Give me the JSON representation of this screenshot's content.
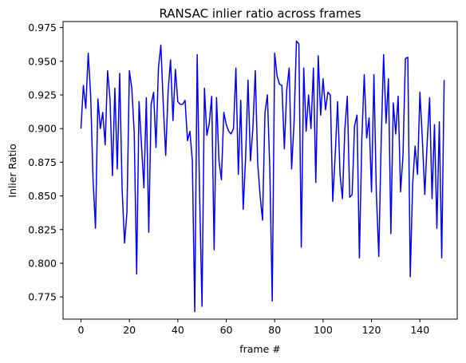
{
  "chart_data": {
    "type": "line",
    "title": "RANSAC inlier ratio across frames",
    "xlabel": "frame #",
    "ylabel": "Inlier Ratio",
    "xlim": [
      -7.4,
      155.4
    ],
    "ylim": [
      0.7585,
      0.9795
    ],
    "xticks": [
      0,
      20,
      40,
      60,
      80,
      100,
      120,
      140
    ],
    "yticks": [
      0.775,
      0.8,
      0.825,
      0.85,
      0.875,
      0.9,
      0.925,
      0.95,
      0.975
    ],
    "ytick_labels": [
      "0.775",
      "0.800",
      "0.825",
      "0.850",
      "0.875",
      "0.900",
      "0.925",
      "0.950",
      "0.975"
    ],
    "grid": false,
    "series": [
      {
        "color": "#0000ff",
        "values": [
          0.9,
          0.932,
          0.915,
          0.956,
          0.925,
          0.862,
          0.826,
          0.922,
          0.9,
          0.912,
          0.888,
          0.943,
          0.922,
          0.865,
          0.93,
          0.87,
          0.941,
          0.855,
          0.815,
          0.838,
          0.943,
          0.93,
          0.897,
          0.792,
          0.92,
          0.888,
          0.856,
          0.923,
          0.823,
          0.918,
          0.927,
          0.886,
          0.945,
          0.962,
          0.918,
          0.88,
          0.928,
          0.951,
          0.906,
          0.944,
          0.92,
          0.918,
          0.918,
          0.921,
          0.891,
          0.898,
          0.876,
          0.764,
          0.955,
          0.851,
          0.768,
          0.93,
          0.895,
          0.904,
          0.924,
          0.81,
          0.923,
          0.876,
          0.862,
          0.912,
          0.903,
          0.898,
          0.896,
          0.9,
          0.945,
          0.866,
          0.921,
          0.84,
          0.878,
          0.936,
          0.876,
          0.9,
          0.943,
          0.874,
          0.85,
          0.832,
          0.912,
          0.925,
          0.87,
          0.772,
          0.956,
          0.939,
          0.933,
          0.932,
          0.885,
          0.929,
          0.945,
          0.87,
          0.904,
          0.965,
          0.963,
          0.812,
          0.945,
          0.898,
          0.925,
          0.9,
          0.945,
          0.86,
          0.954,
          0.91,
          0.937,
          0.914,
          0.927,
          0.925,
          0.846,
          0.88,
          0.92,
          0.866,
          0.848,
          0.9,
          0.924,
          0.849,
          0.851,
          0.902,
          0.91,
          0.804,
          0.892,
          0.94,
          0.893,
          0.908,
          0.853,
          0.94,
          0.852,
          0.805,
          0.891,
          0.955,
          0.904,
          0.937,
          0.822,
          0.919,
          0.896,
          0.924,
          0.853,
          0.88,
          0.952,
          0.953,
          0.79,
          0.859,
          0.887,
          0.866,
          0.927,
          0.892,
          0.851,
          0.89,
          0.923,
          0.848,
          0.903,
          0.826,
          0.905,
          0.804,
          0.936
        ]
      }
    ]
  }
}
